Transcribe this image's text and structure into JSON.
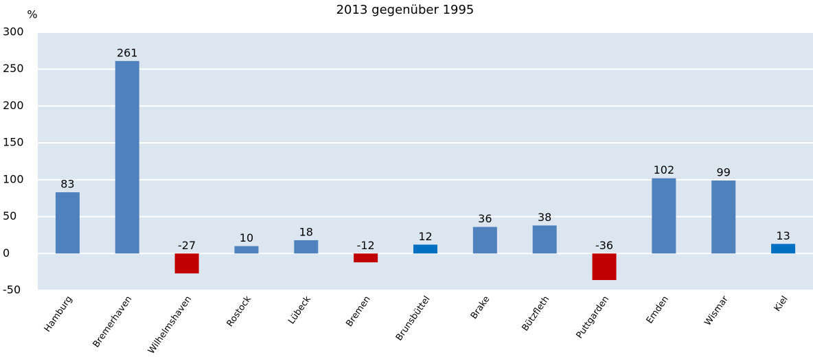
{
  "chart_data": {
    "type": "bar",
    "title": "2013 gegenüber 1995",
    "y_label": "%",
    "categories": [
      "Hamburg",
      "Bremerhaven",
      "Wilhelmshaven",
      "Rostock",
      "Lübeck",
      "Bremen",
      "Brunsbüttel",
      "Brake",
      "Bützfleth",
      "Puttgarden",
      "Emden",
      "Wismar",
      "Kiel"
    ],
    "values": [
      83,
      261,
      -27,
      10,
      18,
      -12,
      12,
      36,
      38,
      -36,
      102,
      99,
      13
    ],
    "colors": [
      "#4f81bd",
      "#4f81bd",
      "#c00000",
      "#4f81bd",
      "#4f81bd",
      "#c00000",
      "#0070c0",
      "#4f81bd",
      "#4f81bd",
      "#c00000",
      "#4f81bd",
      "#4f81bd",
      "#0070c0"
    ],
    "ylim": [
      -50,
      300
    ],
    "yticks": [
      -50,
      0,
      50,
      100,
      150,
      200,
      250,
      300
    ],
    "grid": true
  }
}
